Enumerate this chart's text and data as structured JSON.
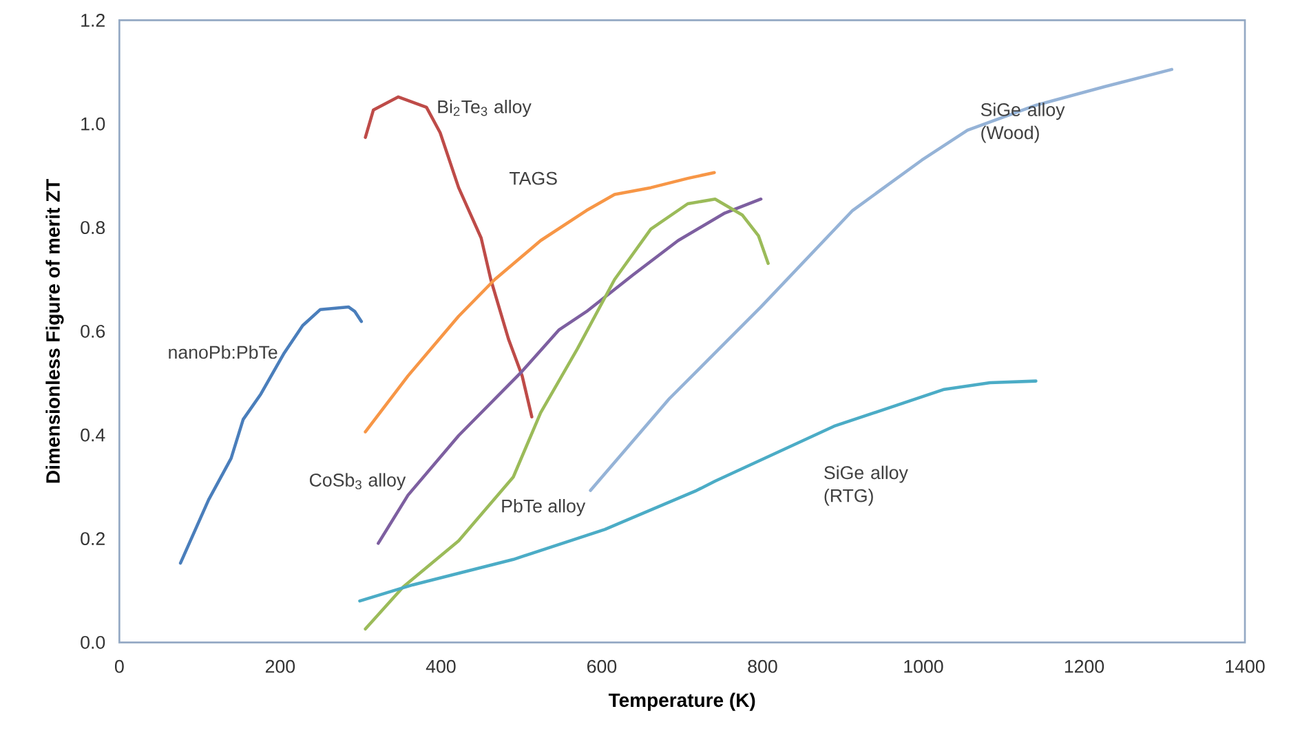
{
  "chart_data": {
    "type": "line",
    "xlabel": "Temperature (K)",
    "ylabel": "Dimensionless Figure of merit ZT",
    "xlim": [
      0,
      1400
    ],
    "ylim": [
      0,
      1.2
    ],
    "xticks": [
      0,
      200,
      400,
      600,
      800,
      1000,
      1200,
      1400
    ],
    "yticks": [
      {
        "value": 0,
        "label": "0.0"
      },
      {
        "value": 0.2,
        "label": "0.2"
      },
      {
        "value": 0.4,
        "label": "0.4"
      },
      {
        "value": 0.6,
        "label": "0.6"
      },
      {
        "value": 0.8,
        "label": "0.8"
      },
      {
        "value": 1.0,
        "label": "1.0"
      },
      {
        "value": 1.2,
        "label": "1.2"
      }
    ],
    "series": [
      {
        "name": "nanoPb:PbTe",
        "color": "#4a7ebb",
        "x": [
          76,
          111,
          139,
          154,
          176,
          205,
          228,
          250,
          285,
          293,
          301
        ],
        "values": [
          0.153,
          0.275,
          0.355,
          0.43,
          0.479,
          0.558,
          0.611,
          0.642,
          0.647,
          0.638,
          0.619
        ]
      },
      {
        "name": "Bi$_{2}$Te$_{3}$ alloy",
        "color": "#be4b48",
        "x": [
          306,
          316,
          347,
          382,
          399,
          422,
          450,
          462,
          484,
          501,
          513
        ],
        "values": [
          0.974,
          1.027,
          1.052,
          1.032,
          0.983,
          0.877,
          0.78,
          0.7,
          0.585,
          0.514,
          0.435
        ]
      },
      {
        "name": "TAGS",
        "color": "#f79646",
        "x": [
          306,
          359,
          422,
          467,
          524,
          581,
          616,
          661,
          707,
          740
        ],
        "values": [
          0.406,
          0.514,
          0.629,
          0.7,
          0.775,
          0.833,
          0.864,
          0.877,
          0.895,
          0.906
        ]
      },
      {
        "name": "CoSb$_{3}$ alloy",
        "color": "#7d5fa0",
        "x": [
          322,
          359,
          422,
          501,
          547,
          581,
          639,
          695,
          753,
          798
        ],
        "values": [
          0.191,
          0.284,
          0.399,
          0.523,
          0.603,
          0.638,
          0.709,
          0.775,
          0.828,
          0.855
        ]
      },
      {
        "name": "PbTe alloy",
        "color": "#9bbb59",
        "x": [
          306,
          353,
          422,
          490,
          524,
          570,
          616,
          661,
          707,
          741,
          775,
          795,
          807
        ],
        "values": [
          0.026,
          0.107,
          0.196,
          0.319,
          0.443,
          0.567,
          0.7,
          0.797,
          0.846,
          0.855,
          0.824,
          0.784,
          0.731
        ]
      },
      {
        "name": "SiGe alloy (Wood)",
        "color": "#95b3d7",
        "x": [
          586,
          684,
          798,
          912,
          998,
          1055,
          1140,
          1226,
          1309
        ],
        "values": [
          0.293,
          0.47,
          0.647,
          0.833,
          0.93,
          0.988,
          1.036,
          1.072,
          1.105
        ]
      },
      {
        "name": "SiGe alloy (RTG)",
        "color": "#4bacc6",
        "x": [
          299,
          365,
          490,
          604,
          718,
          741,
          889,
          1026,
          1083,
          1140
        ],
        "values": [
          0.08,
          0.111,
          0.16,
          0.218,
          0.293,
          0.311,
          0.417,
          0.488,
          0.501,
          0.504
        ]
      }
    ]
  }
}
